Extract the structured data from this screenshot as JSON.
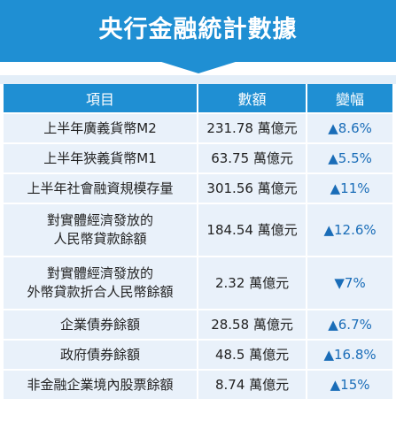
{
  "chart_data": {
    "type": "table",
    "title": "央行金融統計數據",
    "columns": [
      "項目",
      "數額",
      "變幅"
    ],
    "rows": [
      {
        "item_lines": [
          "上半年廣義貨幣M2"
        ],
        "amount": "231.78 萬億元",
        "change": "▲8.6%"
      },
      {
        "item_lines": [
          "上半年狹義貨幣M1"
        ],
        "amount": "63.75 萬億元",
        "change": "▲5.5%"
      },
      {
        "item_lines": [
          "上半年社會融資規模存量"
        ],
        "amount": "301.56 萬億元",
        "change": "▲11%"
      },
      {
        "item_lines": [
          "對實體經濟發放的",
          "人民幣貸款餘額"
        ],
        "amount": "184.54 萬億元",
        "change": "▲12.6%"
      },
      {
        "item_lines": [
          "對實體經濟發放的",
          "外幣貸款折合人民幣餘額"
        ],
        "amount": "2.32 萬億元",
        "change": "▼7%"
      },
      {
        "item_lines": [
          "企業債券餘額"
        ],
        "amount": "28.58 萬億元",
        "change": "▲6.7%"
      },
      {
        "item_lines": [
          "政府債券餘額"
        ],
        "amount": "48.5 萬億元",
        "change": "▲16.8%"
      },
      {
        "item_lines": [
          "非金融企業境內股票餘額"
        ],
        "amount": "8.74 萬億元",
        "change": "▲15%"
      }
    ]
  },
  "colors": {
    "banner": "#1f8fd3",
    "header": "#1f8fd3",
    "cell": "#e9f1fa",
    "change_text": "#1a6db8"
  }
}
